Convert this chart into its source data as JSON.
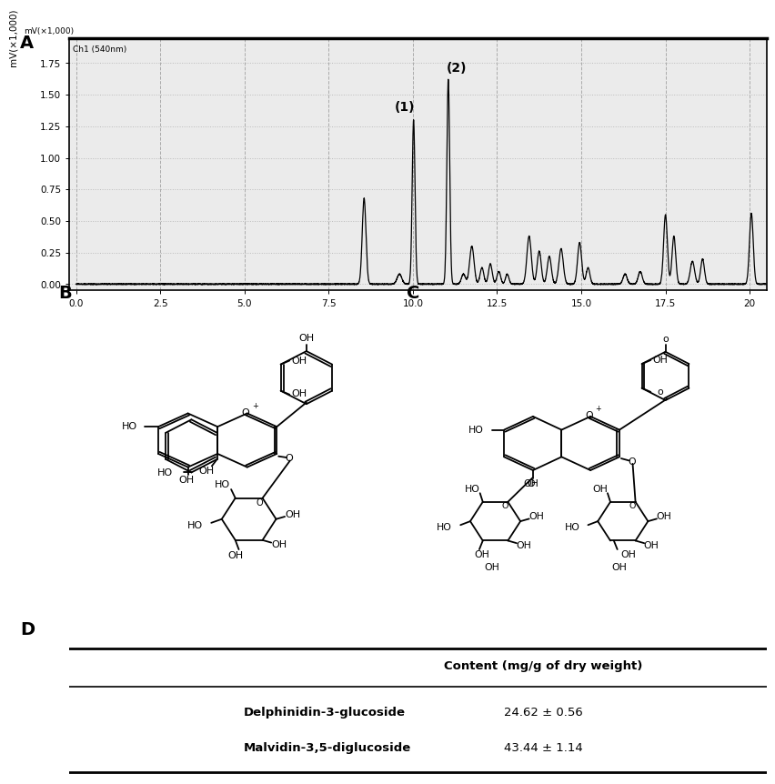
{
  "panel_A_label": "A",
  "panel_B_label": "B",
  "panel_C_label": "C",
  "panel_D_label": "D",
  "chromatogram_ylabel": "mV(×1,000)",
  "chromatogram_channel": "Ch1 (540nm)",
  "chromatogram_xlabel_ticks": [
    0.0,
    2.5,
    5.0,
    7.5,
    10.0,
    12.5,
    15.0,
    17.5,
    20.0
  ],
  "chromatogram_xlabel_labels": [
    "0.0",
    "2.5",
    "5.0",
    "7.5",
    "10.0",
    "12.5",
    "15.0",
    "17.5",
    "20"
  ],
  "chromatogram_yticks": [
    0.0,
    0.25,
    0.5,
    0.75,
    1.0,
    1.25,
    1.5,
    1.75
  ],
  "chromatogram_ylim": [
    -0.05,
    1.95
  ],
  "chromatogram_xlim": [
    -0.2,
    20.5
  ],
  "peak1_label": "(1)",
  "peak2_label": "(2)",
  "plot_bg_color": "#ebebeb",
  "grid_color_h": "#bbbbbb",
  "grid_color_v": "#aaaaaa",
  "line_color": "#000000",
  "table_header": "Content (mg/g of dry weight)",
  "table_row1_label": "Delphinidin-3-glucoside",
  "table_row1_value": "24.62 ± 0.56",
  "table_row2_label": "Malvidin-3,5-diglucoside",
  "table_row2_value": "43.44 ± 1.14"
}
